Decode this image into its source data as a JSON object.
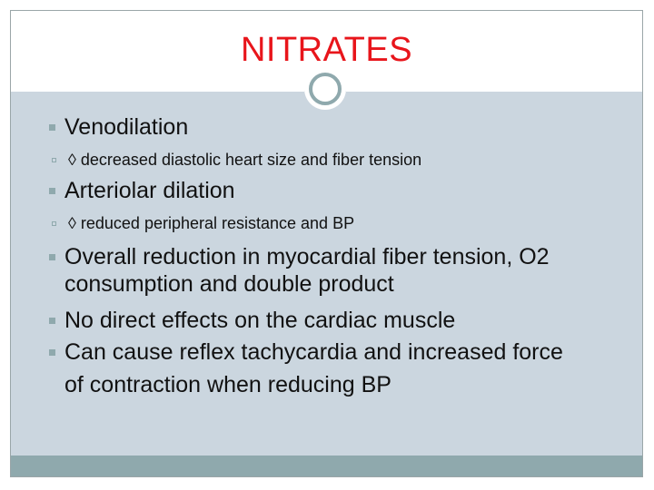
{
  "slide": {
    "title": "NITRATES",
    "bullets": [
      {
        "text": "Venodilation",
        "sub": [
          "◊ decreased diastolic heart size and fiber tension"
        ]
      },
      {
        "text": "Arteriolar dilation",
        "sub": [
          "◊ reduced peripheral resistance and BP"
        ]
      },
      {
        "lines": [
          "Overall reduction in myocardial fiber  tension, O2",
          "consumption and double product"
        ]
      },
      {
        "text": "No direct effects on the cardiac muscle"
      },
      {
        "lines": [
          "Can cause reflex tachycardia and increased force",
          "of contraction when reducing BP"
        ]
      }
    ]
  },
  "colors": {
    "title": "#e8151b",
    "body_background": "#cbd6df",
    "accent": "#8fa9ad",
    "text": "#111111"
  },
  "icons": {
    "bullet": "filled-square-bullet",
    "sub_bullet": "hollow-square-bullet",
    "divider_ornament": "ring-circle"
  }
}
